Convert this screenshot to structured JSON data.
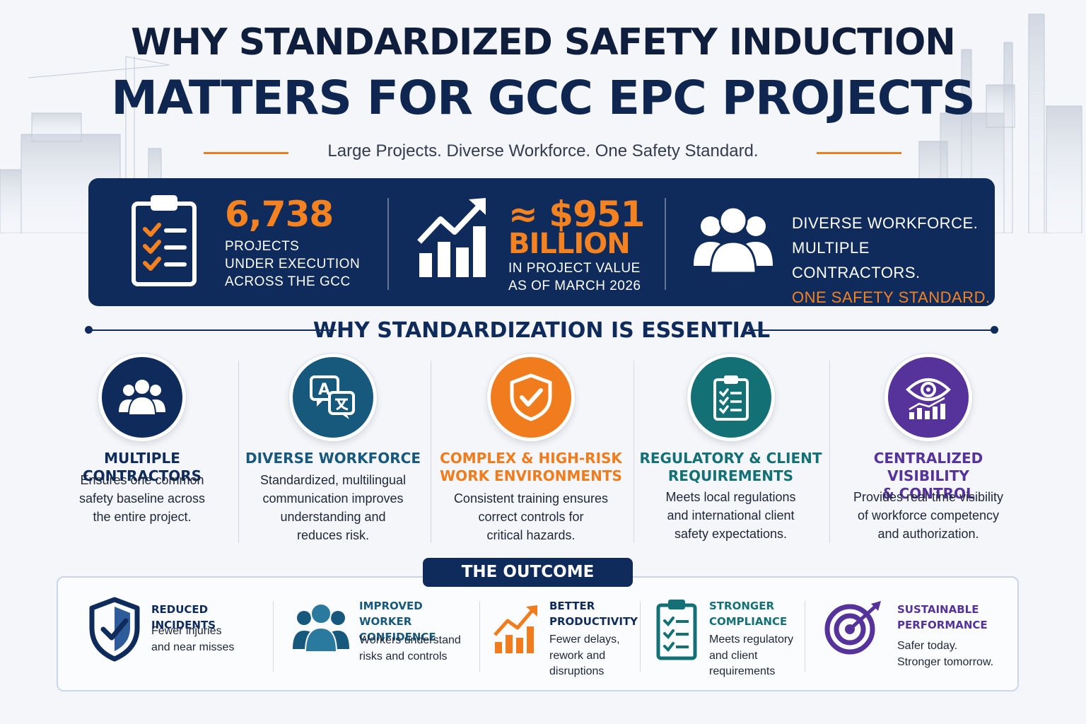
{
  "title": {
    "line1": "WHY STANDARDIZED SAFETY INDUCTION",
    "line2": "MATTERS FOR GCC EPC PROJECTS",
    "subtitle": "Large Projects. Diverse Workforce. One Safety Standard."
  },
  "stats": [
    {
      "icon": "clipboard-checklist-icon",
      "big": "6,738",
      "lines": [
        "PROJECTS",
        "UNDER EXECUTION",
        "ACROSS THE GCC"
      ]
    },
    {
      "icon": "growth-chart-icon",
      "big_line1": "≈ $951",
      "big_line2": "BILLION",
      "lines": [
        "IN PROJECT VALUE",
        "AS OF MARCH 2026"
      ]
    },
    {
      "icon": "people-group-icon",
      "lines": [
        "DIVERSE WORKFORCE.",
        "MULTIPLE CONTRACTORS."
      ],
      "highlight": "ONE SAFETY STANDARD."
    }
  ],
  "section_title": "WHY STANDARDIZATION IS ESSENTIAL",
  "pillars": [
    {
      "icon": "people-group-icon",
      "color": "#0f2b5c",
      "title": [
        "MULTIPLE CONTRACTORS"
      ],
      "desc": [
        "Ensures one common",
        "safety baseline across",
        "the entire project."
      ]
    },
    {
      "icon": "translation-icon",
      "color": "#17587d",
      "title": [
        "DIVERSE WORKFORCE"
      ],
      "desc": [
        "Standardized, multilingual",
        "communication improves",
        "understanding and",
        "reduces risk."
      ]
    },
    {
      "icon": "shield-check-icon",
      "color": "#f07c1e",
      "title": [
        "COMPLEX & HIGH-RISK",
        "WORK ENVIRONMENTS"
      ],
      "desc": [
        "Consistent training ensures",
        "correct controls for",
        "critical hazards."
      ]
    },
    {
      "icon": "clipboard-checklist-icon",
      "color": "#137176",
      "title": [
        "REGULATORY & CLIENT",
        "REQUIREMENTS"
      ],
      "desc": [
        "Meets local regulations",
        "and international client",
        "safety expectations."
      ]
    },
    {
      "icon": "eye-chart-icon",
      "color": "#55339a",
      "title": [
        "CENTRALIZED VISIBILITY",
        "& CONTROL"
      ],
      "desc": [
        "Provides real-time visibility",
        "of workforce competency",
        "and authorization."
      ]
    }
  ],
  "outcome_title": "THE OUTCOME",
  "outcomes": [
    {
      "icon": "shield-check-icon",
      "color": "#0f2b5c",
      "title": [
        "REDUCED INCIDENTS"
      ],
      "desc": [
        "Fewer injuries",
        "and near misses"
      ]
    },
    {
      "icon": "people-group-icon",
      "color": "#17587d",
      "title": [
        "IMPROVED WORKER",
        "CONFIDENCE"
      ],
      "desc": [
        "Workers understand",
        "risks and controls"
      ]
    },
    {
      "icon": "growth-chart-icon",
      "color": "#f07c1e",
      "title": [
        "BETTER",
        "PRODUCTIVITY"
      ],
      "desc": [
        "Fewer delays,",
        "rework and",
        "disruptions"
      ]
    },
    {
      "icon": "clipboard-checklist-icon",
      "color": "#137176",
      "title": [
        "STRONGER",
        "COMPLIANCE"
      ],
      "desc": [
        "Meets regulatory",
        "and client",
        "requirements"
      ]
    },
    {
      "icon": "target-icon",
      "color": "#55339a",
      "title": [
        "SUSTAINABLE",
        "PERFORMANCE"
      ],
      "desc": [
        "Safer today.",
        "Stronger tomorrow."
      ]
    }
  ]
}
